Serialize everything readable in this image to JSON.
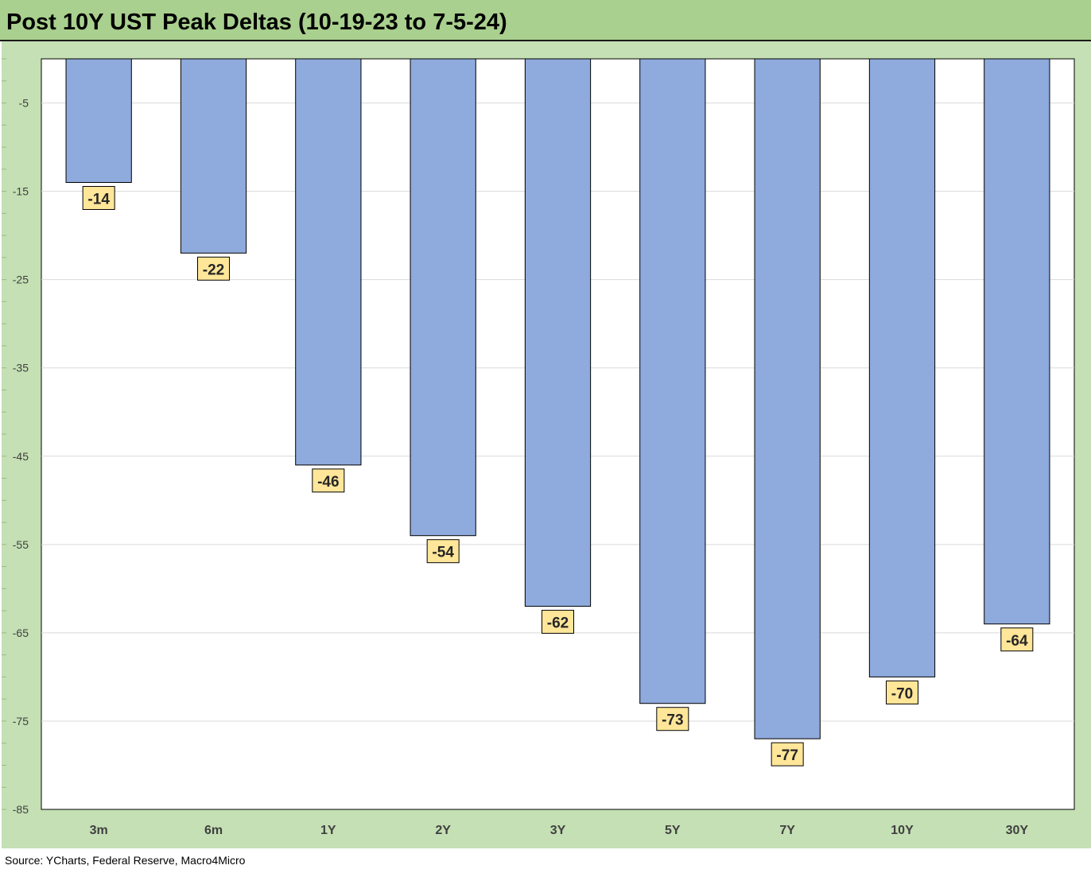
{
  "title": "Post 10Y UST Peak Deltas (10-19-23 to 7-5-24)",
  "source": "Source: YCharts, Federal Reserve, Macro4Micro",
  "colors": {
    "title_bar": "#a9d08e",
    "panel": "#c5e0b4",
    "bar": "#8faadc",
    "label_box": "#ffe699"
  },
  "chart_data": {
    "type": "bar",
    "categories": [
      "3m",
      "6m",
      "1Y",
      "2Y",
      "3Y",
      "5Y",
      "7Y",
      "10Y",
      "30Y"
    ],
    "values": [
      -14,
      -22,
      -46,
      -54,
      -62,
      -73,
      -77,
      -70,
      -64
    ],
    "data_labels": [
      "-14",
      "-22",
      "-46",
      "-54",
      "-62",
      "-73",
      "-77",
      "-70",
      "-64"
    ],
    "yticks": [
      -5,
      -15,
      -25,
      -35,
      -45,
      -55,
      -65,
      -75,
      -85
    ],
    "ytick_labels": [
      "-5",
      "-15",
      "-25",
      "-35",
      "-45",
      "-55",
      "-65",
      "-75",
      "-85"
    ],
    "ylim": [
      -85,
      0
    ],
    "xlabel": "",
    "ylabel": "",
    "grid": true
  }
}
